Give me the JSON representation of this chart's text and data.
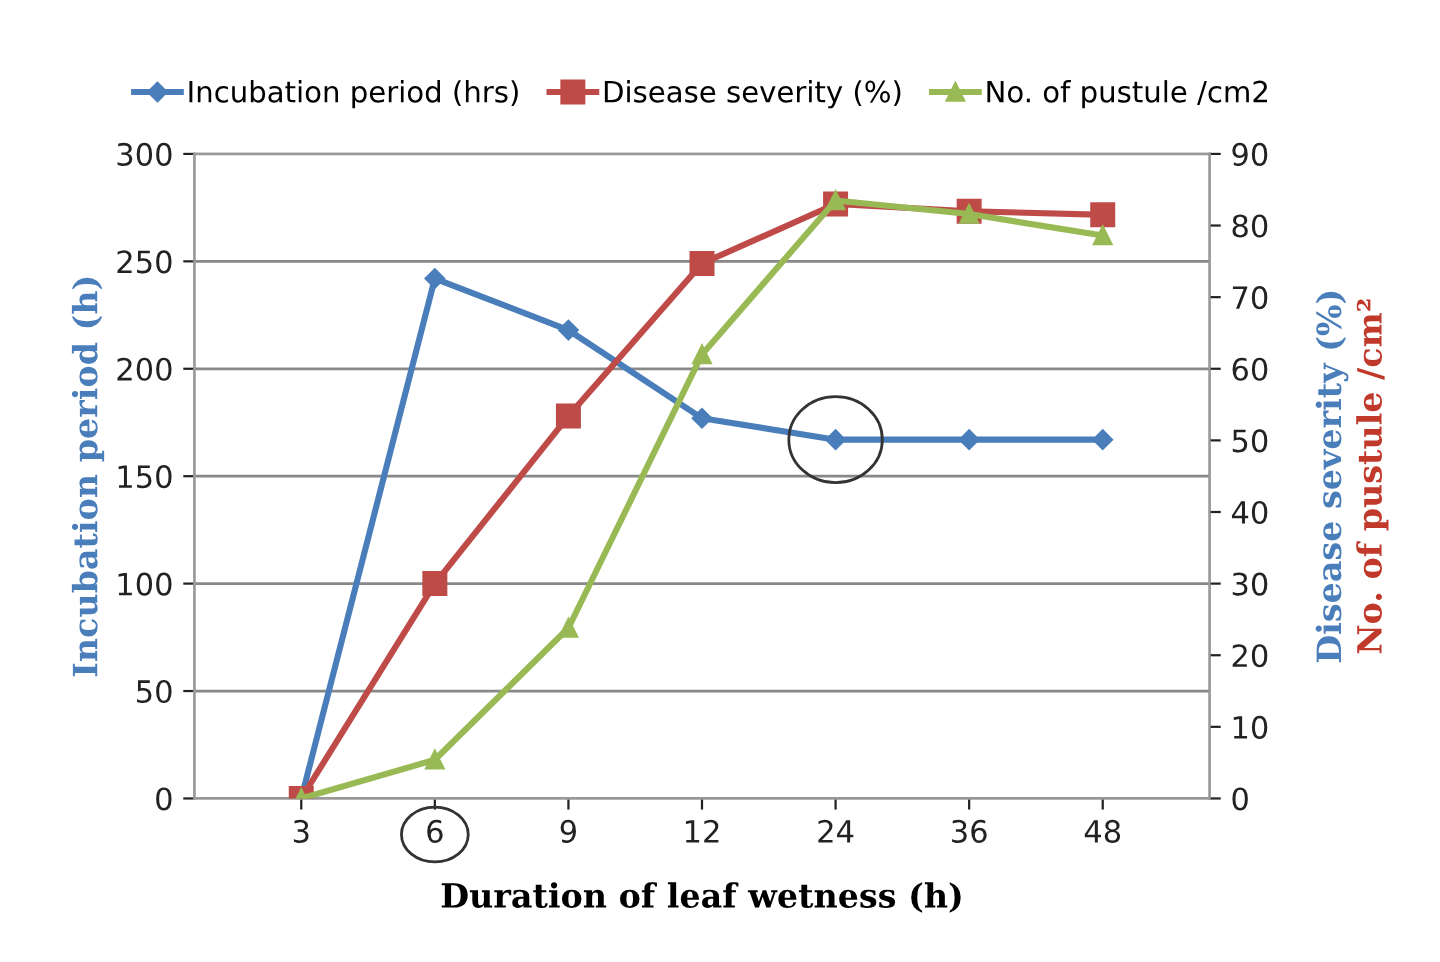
{
  "chart_data": {
    "type": "line",
    "xlabel": "Duration of leaf wetness (h)",
    "ylabel": "Incubation period (h)",
    "y2label": "Disease severity (%)\nNo. of pustule /cm²",
    "categories": [
      "3",
      "6",
      "9",
      "12",
      "24",
      "36",
      "48"
    ],
    "series": [
      {
        "name": "Incubation period (hrs)",
        "color": "#4a7ebb",
        "marker": "diamond",
        "values": [
          0,
          242,
          218,
          177,
          167,
          167,
          167
        ]
      },
      {
        "name": "Disease severity (%)",
        "color": "#be4b48",
        "marker": "square",
        "axis": "y2",
        "values": [
          0,
          30,
          53.4,
          74.7,
          83,
          82,
          81.5
        ]
      },
      {
        "name": "No. of pustule /cm2",
        "color": "#98b954",
        "marker": "triangle",
        "axis": "y2",
        "values": [
          0,
          5.4,
          23.8,
          62,
          83.5,
          81.6,
          78.6
        ]
      }
    ],
    "ylim": [
      0,
      300
    ],
    "yticks": [
      0,
      50,
      100,
      150,
      200,
      250,
      300
    ],
    "y2lim": [
      0,
      90
    ],
    "y2ticks": [
      0,
      10,
      20,
      30,
      40,
      50,
      60,
      70,
      80,
      90
    ],
    "grid": "y",
    "legend": "top",
    "line_style": "solid"
  }
}
